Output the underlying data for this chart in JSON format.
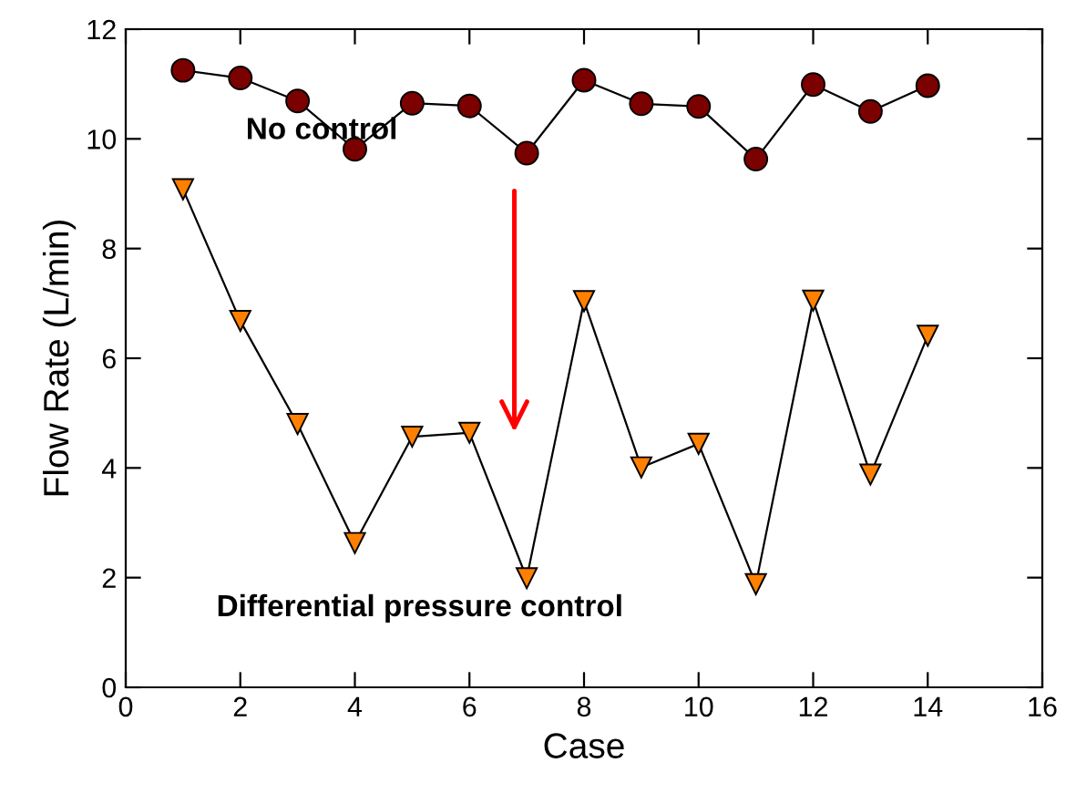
{
  "chart_data": {
    "type": "line",
    "xlabel": "Case",
    "ylabel": "Flow Rate (L/min)",
    "x": [
      1,
      2,
      3,
      4,
      5,
      6,
      7,
      8,
      9,
      10,
      11,
      12,
      13,
      14
    ],
    "series": [
      {
        "color": "#7b0000",
        "marker": "circle",
        "values": [
          11.25,
          11.11,
          10.69,
          9.81,
          10.65,
          10.6,
          9.74,
          11.07,
          10.64,
          10.59,
          9.63,
          10.99,
          10.5,
          10.97
        ]
      },
      {
        "color": "#ff8000",
        "marker": "triangle",
        "values": [
          9.08,
          6.68,
          4.8,
          2.63,
          4.57,
          4.64,
          1.99,
          7.04,
          4.01,
          4.44,
          1.88,
          7.05,
          3.88,
          6.41
        ]
      }
    ],
    "annotations": [
      "No control",
      "Differential pressure control"
    ],
    "xlim": [
      0,
      16
    ],
    "ylim": [
      0,
      12
    ],
    "xticks": [
      0,
      2,
      4,
      6,
      8,
      10,
      12,
      14,
      16
    ],
    "yticks": [
      0,
      2,
      4,
      6,
      8,
      10,
      12
    ],
    "grid": false,
    "legend": false
  }
}
